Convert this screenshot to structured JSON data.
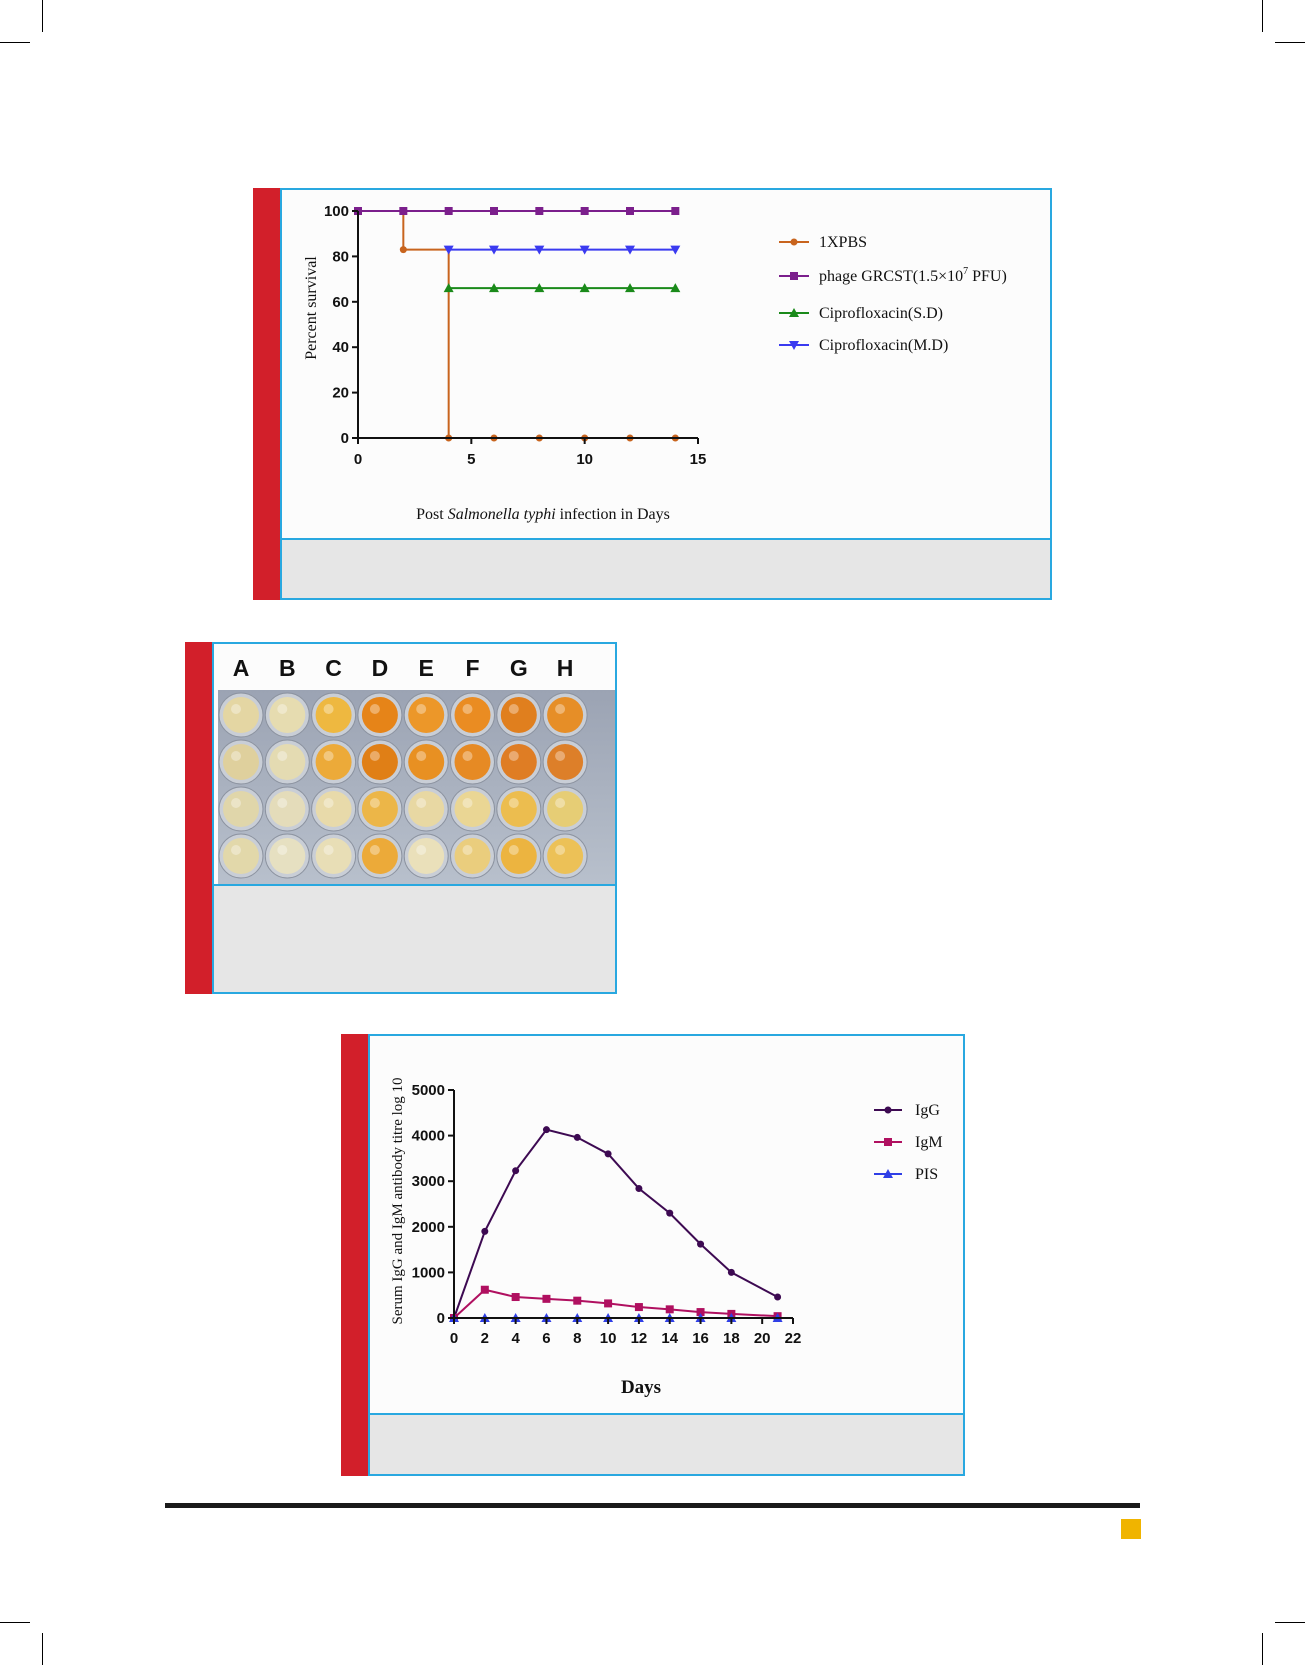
{
  "colors": {
    "accent_bar": "#d21f2a",
    "frame_border": "#29a8e0",
    "caption_bg": "#e6e6e6",
    "page_badge": "#f0b400"
  },
  "figure1": {
    "ylabel": "Percent survival",
    "xlabel_prefix": "Post ",
    "xlabel_italic": "Salmonella typhi",
    "xlabel_suffix": " infection in Days",
    "legend": {
      "s1": "1XPBS",
      "s2_prefix": "phage GRCST(1.5×10",
      "s2_sup": "7",
      "s2_suffix": " PFU)",
      "s3": "Ciprofloxacin(S.D)",
      "s4": "Ciprofloxacin(M.D)"
    }
  },
  "figure2": {
    "column_labels": [
      "A",
      "B",
      "C",
      "D",
      "E",
      "F",
      "G",
      "H"
    ]
  },
  "figure3": {
    "ylabel": "Serum IgG and IgM antibody titre log 10",
    "xlabel": "Days",
    "legend": {
      "s1": "IgG",
      "s2": "IgM",
      "s3": "PIS"
    }
  },
  "chart_data": [
    {
      "type": "line",
      "title": "",
      "xlabel": "Post Salmonella typhi infection in Days",
      "ylabel": "Percent survival",
      "xlim": [
        0,
        15
      ],
      "ylim": [
        0,
        100
      ],
      "xticks": [
        0,
        5,
        10,
        15
      ],
      "yticks": [
        0,
        20,
        40,
        60,
        80,
        100
      ],
      "legend_position": "right",
      "step": true,
      "series": [
        {
          "name": "1XPBS",
          "color": "#c8641e",
          "marker": "circle",
          "x": [
            0,
            2,
            4,
            6,
            8,
            10,
            12,
            14
          ],
          "y": [
            100,
            83,
            0,
            0,
            0,
            0,
            0,
            0
          ]
        },
        {
          "name": "phage GRCST(1.5×10^7 PFU)",
          "color": "#7b1f8c",
          "marker": "square",
          "x": [
            0,
            2,
            4,
            6,
            8,
            10,
            12,
            14
          ],
          "y": [
            100,
            100,
            100,
            100,
            100,
            100,
            100,
            100
          ]
        },
        {
          "name": "Ciprofloxacin(S.D)",
          "color": "#1a8a1a",
          "marker": "triangle-up",
          "x": [
            4,
            6,
            8,
            10,
            12,
            14
          ],
          "y": [
            66,
            66,
            66,
            66,
            66,
            66
          ]
        },
        {
          "name": "Ciprofloxacin(M.D)",
          "color": "#3a3af0",
          "marker": "triangle-down",
          "x": [
            4,
            6,
            8,
            10,
            12,
            14
          ],
          "y": [
            83,
            83,
            83,
            83,
            83,
            83
          ]
        }
      ]
    },
    {
      "type": "line",
      "title": "",
      "xlabel": "Days",
      "ylabel": "Serum IgG and IgM antibody titre log 10",
      "xlim": [
        0,
        22
      ],
      "ylim": [
        0,
        5000
      ],
      "xticks": [
        0,
        2,
        4,
        6,
        8,
        10,
        12,
        14,
        16,
        18,
        20,
        22
      ],
      "yticks": [
        0,
        1000,
        2000,
        3000,
        4000,
        5000
      ],
      "legend_position": "top-right",
      "series": [
        {
          "name": "IgG",
          "color": "#3d0a52",
          "marker": "circle",
          "x": [
            0,
            2,
            4,
            6,
            8,
            10,
            12,
            14,
            16,
            18,
            21
          ],
          "y": [
            0,
            1900,
            3230,
            4130,
            3960,
            3600,
            2840,
            2300,
            1620,
            1000,
            460
          ]
        },
        {
          "name": "IgM",
          "color": "#b01060",
          "marker": "square",
          "x": [
            0,
            2,
            4,
            6,
            8,
            10,
            12,
            14,
            16,
            18,
            21
          ],
          "y": [
            0,
            620,
            460,
            420,
            380,
            320,
            240,
            190,
            130,
            90,
            40
          ]
        },
        {
          "name": "PIS",
          "color": "#2f3fe6",
          "marker": "triangle-up",
          "x": [
            0,
            2,
            4,
            6,
            8,
            10,
            12,
            14,
            16,
            18,
            21
          ],
          "y": [
            0,
            0,
            0,
            0,
            0,
            0,
            0,
            0,
            0,
            0,
            0
          ]
        }
      ]
    }
  ]
}
